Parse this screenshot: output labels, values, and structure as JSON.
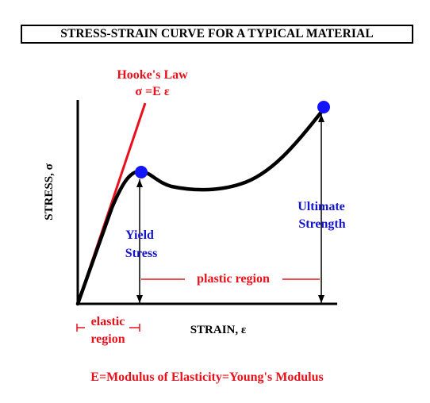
{
  "title": "STRESS-STRAIN CURVE FOR A TYPICAL MATERIAL",
  "hookes_law": {
    "label": "Hooke's Law",
    "equation": "σ =E ε"
  },
  "axes": {
    "ylabel": "STRESS, σ",
    "xlabel": "STRAIN, ε"
  },
  "points": {
    "yield": {
      "line1": "Yield",
      "line2": "Stress"
    },
    "ultimate": {
      "line1": "Ultimate",
      "line2": "Strength"
    }
  },
  "regions": {
    "plastic": "plastic region",
    "elastic_line1": "elastic",
    "elastic_line2": "region"
  },
  "footer": "E=Modulus of Elasticity=Young's Modulus",
  "colors": {
    "red": "#e8101a",
    "blue": "#1414c8",
    "navy": "#00008b",
    "black": "#000000"
  }
}
